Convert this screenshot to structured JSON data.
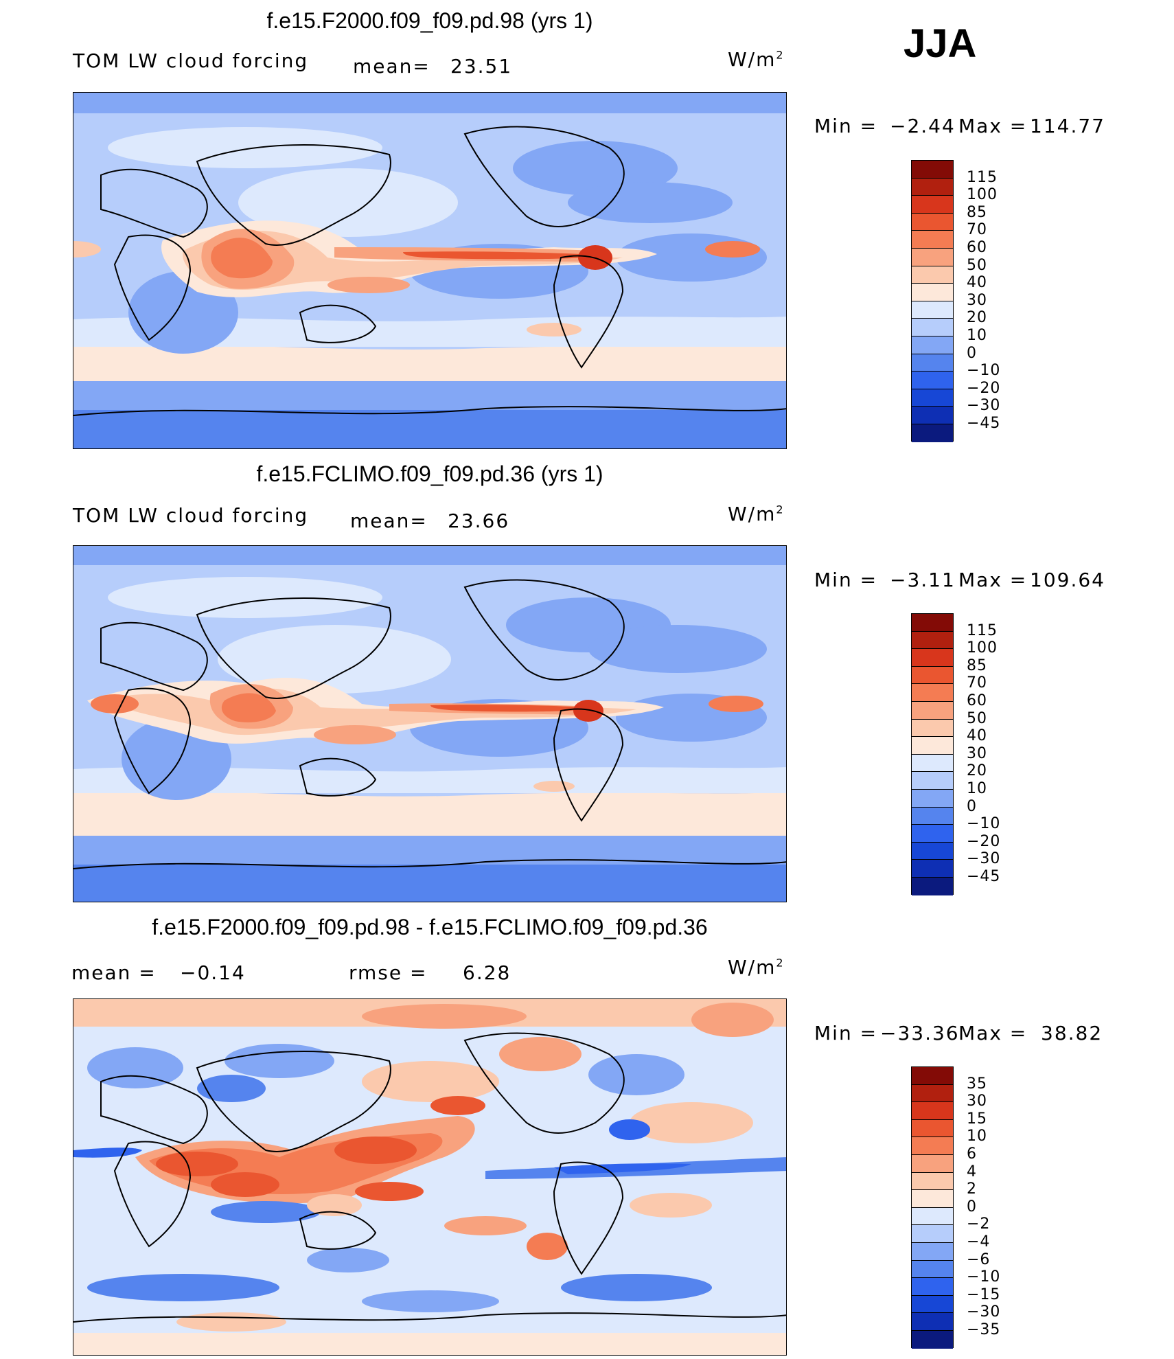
{
  "season": "JJA",
  "units": "W/m",
  "units_sup": "2",
  "colors": {
    "abs_scale": [
      "#0b1a7e",
      "#0e2fb4",
      "#1747d6",
      "#2f63ee",
      "#5584ee",
      "#83a7f5",
      "#b6cdfb",
      "#dde9fd",
      "#fde8da",
      "#fbc9ad",
      "#f8a27e",
      "#f47c53",
      "#ea5630",
      "#d8361c",
      "#b1200f",
      "#830b06"
    ],
    "diff_scale": [
      "#0b1a7e",
      "#0e2fb4",
      "#1747d6",
      "#2f63ee",
      "#5584ee",
      "#83a7f5",
      "#b6cdfb",
      "#dde9fd",
      "#fde8da",
      "#fbc9ad",
      "#f8a27e",
      "#f47c53",
      "#ea5630",
      "#d8361c",
      "#b1200f",
      "#830b06"
    ]
  },
  "panels": [
    {
      "title": "f.e15.F2000.f09_f09.pd.98 (yrs 1)",
      "variable": "TOM LW cloud forcing",
      "stat1_label": "mean=",
      "stat1_value": "23.51",
      "stat2_label": "",
      "stat2_value": "",
      "min_label": "Min  =",
      "min_value": "−2.44",
      "max_label": "Max  =",
      "max_value": "114.77",
      "levels": [
        "115",
        "100",
        "85",
        "70",
        "60",
        "50",
        "40",
        "30",
        "20",
        "10",
        "0",
        "−10",
        "−20",
        "−30",
        "−45"
      ]
    },
    {
      "title": "f.e15.FCLIMO.f09_f09.pd.36 (yrs 1)",
      "variable": "TOM LW cloud forcing",
      "stat1_label": "mean=",
      "stat1_value": "23.66",
      "stat2_label": "",
      "stat2_value": "",
      "min_label": "Min  =",
      "min_value": "−3.11",
      "max_label": "Max  =",
      "max_value": "109.64",
      "levels": [
        "115",
        "100",
        "85",
        "70",
        "60",
        "50",
        "40",
        "30",
        "20",
        "10",
        "0",
        "−10",
        "−20",
        "−30",
        "−45"
      ]
    },
    {
      "title": "f.e15.F2000.f09_f09.pd.98 - f.e15.FCLIMO.f09_f09.pd.36",
      "variable": "",
      "stat1_label": "mean  =",
      "stat1_value": "−0.14",
      "stat2_label": "rmse  =",
      "stat2_value": "6.28",
      "min_label": "Min  =",
      "min_value": "−33.36",
      "max_label": "Max  =",
      "max_value": "38.82",
      "levels": [
        "35",
        "30",
        "15",
        "10",
        "6",
        "4",
        "2",
        "0",
        "−2",
        "−4",
        "−6",
        "−10",
        "−15",
        "−30",
        "−35"
      ]
    }
  ]
}
